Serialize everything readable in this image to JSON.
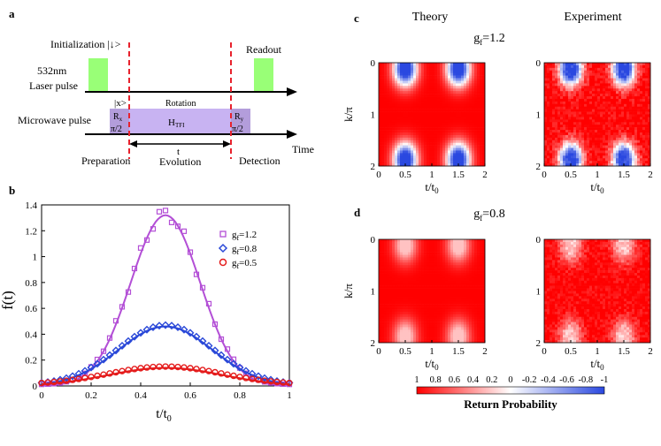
{
  "panel_labels": {
    "a": "a",
    "b": "b",
    "c": "c",
    "d": "d"
  },
  "colors": {
    "laser": "#99ff77",
    "microwave": "#b39ddb",
    "microwave_rot": "#c8b3f2",
    "dashed": "#e8222d",
    "purple": "#b34fd6",
    "blue": "#2a48d8",
    "red": "#e41b1b"
  },
  "diagram": {
    "init_label": "Initialization |↓>",
    "laser_label_1": "532nm",
    "laser_label_2": "Laser pulse",
    "readout_label": "Readout",
    "microwave_label": "Microwave pulse",
    "state_x": "|x>",
    "rotation_label": "Rotation",
    "r_left": "R",
    "r_left_sub": "x",
    "r_left_frac": "π/2",
    "hamiltonian": "H",
    "hamiltonian_sub": "TFI",
    "r_right": "R",
    "r_right_sub": "y",
    "r_right_frac": "π/2",
    "t_label": "t",
    "time_label": "Time",
    "preparation": "Preparation",
    "evolution": "Evolution",
    "detection": "Detection"
  },
  "chart_b": {
    "type": "line",
    "ylabel": "f(t)",
    "xlabel_main": "t/t",
    "xlabel_sub": "0",
    "xlim": [
      0,
      1
    ],
    "ylim": [
      0,
      1.4
    ],
    "x_ticks": [
      "0",
      "0.2",
      "0.4",
      "0.6",
      "0.8",
      "1"
    ],
    "y_ticks": [
      "0",
      "0.2",
      "0.4",
      "0.6",
      "0.8",
      "1",
      "1.2",
      "1.4"
    ],
    "series": [
      {
        "name": "g=1.2",
        "label_main": "g",
        "label_sub": "f",
        "label_val": "=1.2",
        "marker": "square",
        "peak": 1.32,
        "width": 0.14
      },
      {
        "name": "g=0.8",
        "label_main": "g",
        "label_sub": "f",
        "label_val": "=0.8",
        "marker": "diamond",
        "peak": 0.46,
        "width": 0.19
      },
      {
        "name": "g=0.5",
        "label_main": "g",
        "label_sub": "f",
        "label_val": "=0.5",
        "marker": "circle",
        "peak": 0.14,
        "width": 0.23
      }
    ]
  },
  "heatmaps": {
    "theory_title": "Theory",
    "experiment_title": "Experiment",
    "c_g_main": "g",
    "c_g_sub": "f",
    "c_g_val": "=1.2",
    "d_g_main": "g",
    "d_g_sub": "f",
    "d_g_val": "=0.8",
    "ylabel": "k/π",
    "xlabel_main": "t/t",
    "xlabel_sub": "0",
    "x_ticks": [
      "0",
      "0.5",
      "1",
      "1.5",
      "2"
    ],
    "y_ticks": [
      "0",
      "1",
      "2"
    ],
    "colorbar_ticks": [
      "1",
      "0.8",
      "0.6",
      "0.4",
      "0.2",
      "0",
      "-0.2",
      "-0.4",
      "-0.6",
      "-0.8",
      "-1"
    ],
    "colorbar_label": "Return Probability",
    "c_depth": 1.0,
    "d_depth": 0.38
  }
}
